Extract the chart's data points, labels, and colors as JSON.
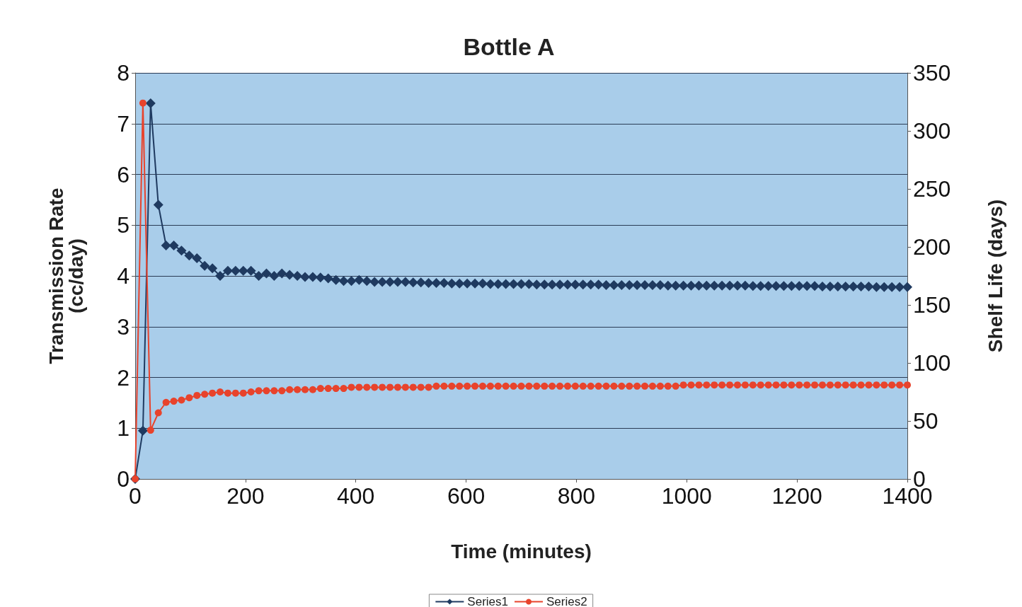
{
  "chart_data": {
    "type": "line",
    "title": "Bottle A",
    "xlabel": "Time (minutes)",
    "ylabel": "Transmission Rate\n(cc/day)",
    "y2label": "Shelf Life (days)",
    "x": [
      0,
      14,
      28,
      42,
      56,
      70,
      84,
      98,
      112,
      126,
      140,
      154,
      168,
      182,
      196,
      210,
      224,
      238,
      252,
      266,
      280,
      294,
      308,
      322,
      336,
      350,
      364,
      378,
      392,
      406,
      420,
      434,
      448,
      462,
      476,
      490,
      504,
      518,
      532,
      546,
      560,
      574,
      588,
      602,
      616,
      630,
      644,
      658,
      672,
      686,
      700,
      714,
      728,
      742,
      756,
      770,
      784,
      798,
      812,
      826,
      840,
      854,
      868,
      882,
      896,
      910,
      924,
      938,
      952,
      966,
      980,
      994,
      1008,
      1022,
      1036,
      1050,
      1064,
      1078,
      1092,
      1106,
      1120,
      1134,
      1148,
      1162,
      1176,
      1190,
      1204,
      1218,
      1232,
      1246,
      1260,
      1274,
      1288,
      1302,
      1316,
      1330,
      1344,
      1358,
      1372,
      1386,
      1400
    ],
    "series": [
      {
        "name": "Series1",
        "color": "#1f3a60",
        "marker": "diamond",
        "values": [
          0,
          0.95,
          7.4,
          5.4,
          4.6,
          4.6,
          4.5,
          4.4,
          4.35,
          4.2,
          4.15,
          4.0,
          4.1,
          4.1,
          4.1,
          4.1,
          4.0,
          4.05,
          4.0,
          4.05,
          4.02,
          4.0,
          3.98,
          3.98,
          3.97,
          3.95,
          3.92,
          3.9,
          3.9,
          3.92,
          3.9,
          3.88,
          3.88,
          3.88,
          3.88,
          3.88,
          3.87,
          3.87,
          3.86,
          3.86,
          3.86,
          3.85,
          3.85,
          3.85,
          3.85,
          3.85,
          3.84,
          3.84,
          3.84,
          3.84,
          3.84,
          3.84,
          3.83,
          3.83,
          3.83,
          3.83,
          3.83,
          3.83,
          3.83,
          3.83,
          3.83,
          3.82,
          3.82,
          3.82,
          3.82,
          3.82,
          3.82,
          3.82,
          3.82,
          3.81,
          3.81,
          3.81,
          3.81,
          3.81,
          3.81,
          3.81,
          3.81,
          3.81,
          3.81,
          3.81,
          3.8,
          3.8,
          3.8,
          3.8,
          3.8,
          3.8,
          3.8,
          3.8,
          3.8,
          3.79,
          3.79,
          3.79,
          3.79,
          3.79,
          3.79,
          3.79,
          3.78,
          3.78,
          3.78,
          3.78,
          3.78
        ]
      },
      {
        "name": "Series2",
        "color": "#e8432c",
        "marker": "circle",
        "axis": "y2",
        "values": [
          0,
          324,
          42,
          57,
          66,
          67,
          68,
          70,
          72,
          73,
          74,
          75,
          74,
          74,
          74,
          75,
          76,
          76,
          76,
          76,
          77,
          77,
          77,
          77,
          78,
          78,
          78,
          78,
          79,
          79,
          79,
          79,
          79,
          79,
          79,
          79,
          79,
          79,
          79,
          80,
          80,
          80,
          80,
          80,
          80,
          80,
          80,
          80,
          80,
          80,
          80,
          80,
          80,
          80,
          80,
          80,
          80,
          80,
          80,
          80,
          80,
          80,
          80,
          80,
          80,
          80,
          80,
          80,
          80,
          80,
          80,
          81,
          81,
          81,
          81,
          81,
          81,
          81,
          81,
          81,
          81,
          81,
          81,
          81,
          81,
          81,
          81,
          81,
          81,
          81,
          81,
          81,
          81,
          81,
          81,
          81,
          81,
          81,
          81,
          81,
          81
        ]
      }
    ],
    "xlim": [
      0,
      1400
    ],
    "xticks": [
      0,
      200,
      400,
      600,
      800,
      1000,
      1200,
      1400
    ],
    "ylim": [
      0,
      8
    ],
    "yticks": [
      0,
      1,
      2,
      3,
      4,
      5,
      6,
      7,
      8
    ],
    "y2lim": [
      0,
      350
    ],
    "y2ticks": [
      0,
      50,
      100,
      150,
      200,
      250,
      300,
      350
    ],
    "grid": "y",
    "legend": "bottom",
    "line_style": "solid"
  }
}
